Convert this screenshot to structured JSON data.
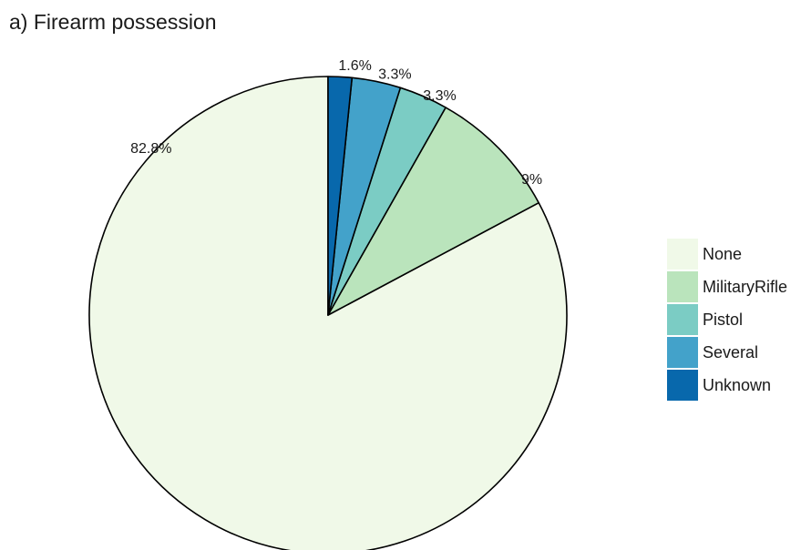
{
  "chart_data": {
    "type": "pie",
    "title": "a) Firearm possession",
    "categories": [
      "None",
      "MilitaryRifle",
      "Pistol",
      "Several",
      "Unknown"
    ],
    "values": [
      82.8,
      9,
      3.3,
      3.3,
      1.6
    ],
    "labels": [
      "82.8%",
      "9%",
      "3.3%",
      "3.3%",
      "1.6%"
    ],
    "colors": [
      "#f0f9e8",
      "#bae4bc",
      "#7bccc4",
      "#43a2ca",
      "#0868ac"
    ],
    "start_angle": "12 o'clock",
    "direction": "counter-clockwise",
    "legend": {
      "placement": "right",
      "entries": [
        "None",
        "MilitaryRifle",
        "Pistol",
        "Several",
        "Unknown"
      ]
    }
  }
}
